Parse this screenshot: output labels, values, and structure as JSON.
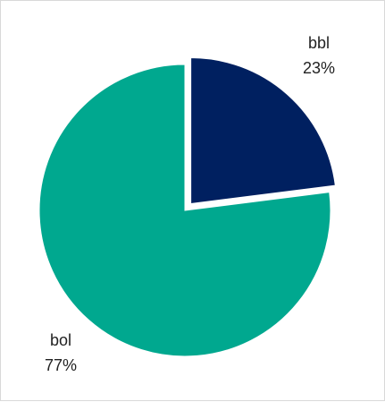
{
  "chart_data": {
    "type": "pie",
    "title": "",
    "slices": [
      {
        "label": "bbl",
        "value": 23,
        "percent_label": "23%",
        "color": "#002060",
        "exploded": true
      },
      {
        "label": "bol",
        "value": 77,
        "percent_label": "77%",
        "color": "#00A88F",
        "exploded": false
      }
    ],
    "start_angle_deg": 0,
    "direction": "clockwise",
    "legend": "none"
  }
}
